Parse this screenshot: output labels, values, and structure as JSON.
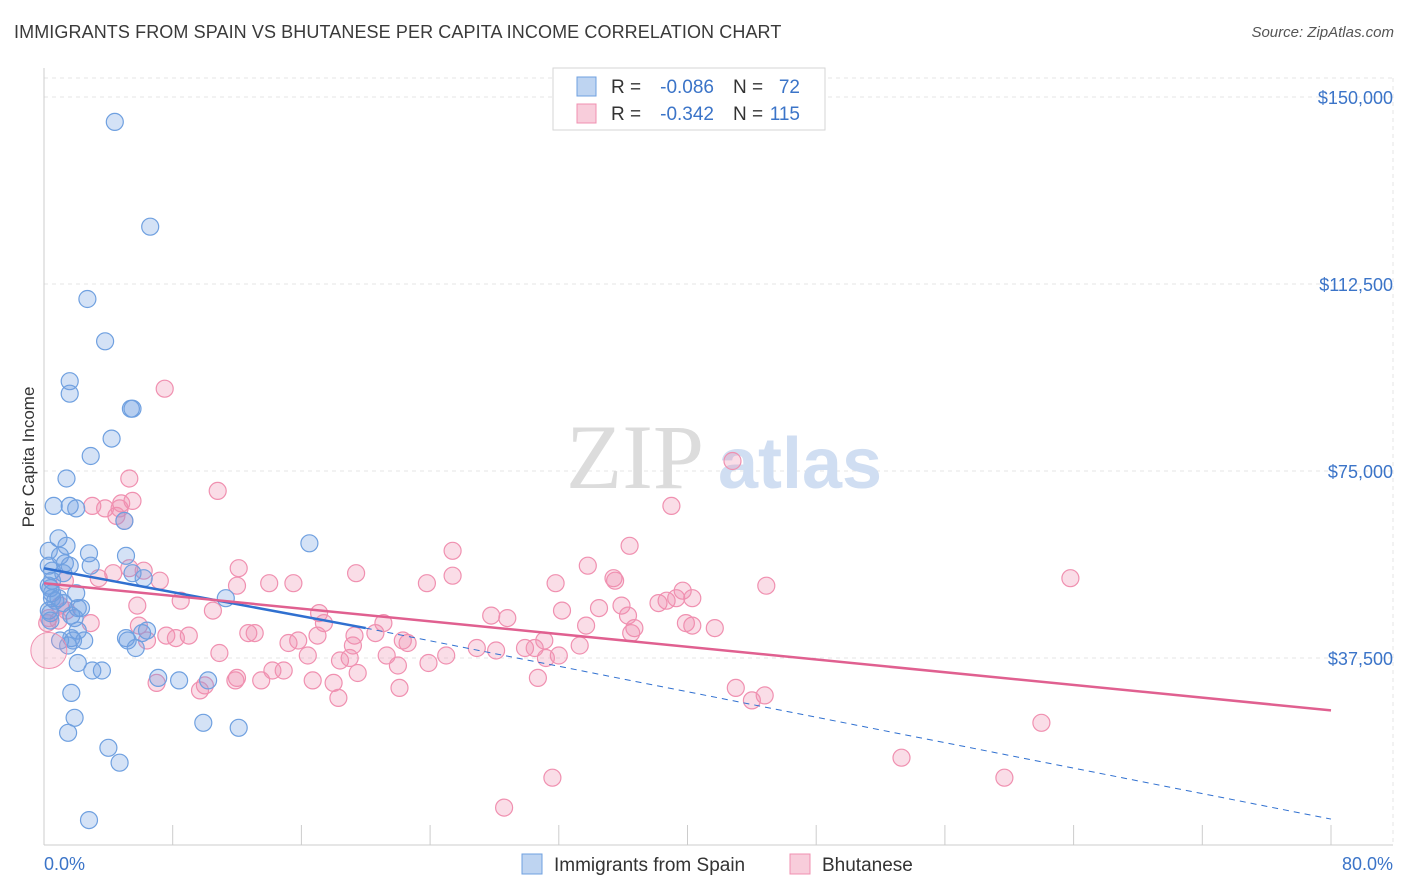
{
  "title": "IMMIGRANTS FROM SPAIN VS BHUTANESE PER CAPITA INCOME CORRELATION CHART",
  "source": "Source: ZipAtlas.com",
  "watermark": {
    "zip": "ZIP",
    "atlas": "atlas"
  },
  "chart_data": {
    "type": "scatter",
    "ylabel": "Per Capita Income",
    "xlim": [
      0,
      80
    ],
    "ylim": [
      0,
      150000
    ],
    "x_tick_labels": {
      "min": "0.0%",
      "max": "80.0%"
    },
    "y_ticks": [
      {
        "value": 150000,
        "label": "$150,000"
      },
      {
        "value": 112500,
        "label": "$112,500"
      },
      {
        "value": 75000,
        "label": "$75,000"
      },
      {
        "value": 37500,
        "label": "$37,500"
      }
    ],
    "grid": true,
    "legend_position": "top-center",
    "legend": [
      {
        "r_label": "R =",
        "r_value": "-0.086",
        "n_label": "N =",
        "n_value": "72"
      },
      {
        "r_label": "R =",
        "r_value": "-0.342",
        "n_label": "N =",
        "n_value": "115"
      }
    ],
    "series": [
      {
        "name": "Immigrants from Spain",
        "color": "#6fa0e0",
        "line_color": "#3070d0",
        "trend": {
          "x": [
            0,
            20
          ],
          "y": [
            55500,
            43500
          ],
          "dashed_to": [
            80,
            5200
          ]
        },
        "points": [
          [
            4.4,
            145000
          ],
          [
            6.6,
            124000
          ],
          [
            2.7,
            109500
          ],
          [
            3.8,
            101000
          ],
          [
            1.6,
            93000
          ],
          [
            1.6,
            90500
          ],
          [
            5.4,
            87500
          ],
          [
            5.5,
            87500
          ],
          [
            4.2,
            81500
          ],
          [
            2.9,
            78000
          ],
          [
            1.4,
            73500
          ],
          [
            1.6,
            68000
          ],
          [
            0.6,
            68000
          ],
          [
            2.0,
            67500
          ],
          [
            5.0,
            65000
          ],
          [
            0.9,
            61500
          ],
          [
            1.4,
            60000
          ],
          [
            16.5,
            60500
          ],
          [
            0.3,
            59000
          ],
          [
            1.0,
            58000
          ],
          [
            2.8,
            58500
          ],
          [
            5.1,
            58000
          ],
          [
            1.3,
            56500
          ],
          [
            1.6,
            56000
          ],
          [
            0.3,
            56000
          ],
          [
            2.9,
            56000
          ],
          [
            0.5,
            55000
          ],
          [
            1.2,
            54500
          ],
          [
            5.5,
            54500
          ],
          [
            6.2,
            53500
          ],
          [
            0.5,
            53000
          ],
          [
            0.3,
            52000
          ],
          [
            0.4,
            51500
          ],
          [
            0.5,
            50500
          ],
          [
            2.0,
            50500
          ],
          [
            0.5,
            49500
          ],
          [
            0.9,
            49500
          ],
          [
            0.7,
            49000
          ],
          [
            11.3,
            49500
          ],
          [
            1.2,
            48500
          ],
          [
            2.1,
            47500
          ],
          [
            2.3,
            47500
          ],
          [
            0.3,
            47000
          ],
          [
            0.4,
            46500
          ],
          [
            1.7,
            46000
          ],
          [
            1.9,
            45500
          ],
          [
            0.4,
            45000
          ],
          [
            2.1,
            43000
          ],
          [
            6.4,
            43000
          ],
          [
            6.1,
            42500
          ],
          [
            5.1,
            41500
          ],
          [
            1.7,
            41500
          ],
          [
            2.5,
            41000
          ],
          [
            1.0,
            41000
          ],
          [
            1.8,
            41000
          ],
          [
            5.2,
            41000
          ],
          [
            1.5,
            40000
          ],
          [
            5.7,
            39500
          ],
          [
            2.1,
            36500
          ],
          [
            3.0,
            35000
          ],
          [
            3.6,
            35000
          ],
          [
            7.1,
            33500
          ],
          [
            8.4,
            33000
          ],
          [
            10.2,
            33000
          ],
          [
            1.7,
            30500
          ],
          [
            1.9,
            25500
          ],
          [
            9.9,
            24500
          ],
          [
            12.1,
            23500
          ],
          [
            1.5,
            22500
          ],
          [
            4.0,
            19500
          ],
          [
            4.7,
            16500
          ],
          [
            2.8,
            5000
          ]
        ]
      },
      {
        "name": "Bhutanese",
        "color": "#f090b0",
        "line_color": "#e06090",
        "trend": {
          "x": [
            0,
            80
          ],
          "y": [
            52500,
            27000
          ]
        },
        "points": [
          [
            7.5,
            91500
          ],
          [
            42.8,
            77000
          ],
          [
            5.3,
            73500
          ],
          [
            10.8,
            71000
          ],
          [
            5.5,
            69000
          ],
          [
            4.8,
            68500
          ],
          [
            3.0,
            68000
          ],
          [
            4.7,
            67500
          ],
          [
            3.8,
            67500
          ],
          [
            4.5,
            66000
          ],
          [
            39.0,
            68000
          ],
          [
            5.0,
            65000
          ],
          [
            36.4,
            60000
          ],
          [
            25.4,
            59000
          ],
          [
            5.3,
            55500
          ],
          [
            33.8,
            56000
          ],
          [
            12.1,
            55500
          ],
          [
            4.3,
            54500
          ],
          [
            6.2,
            55000
          ],
          [
            7.2,
            53000
          ],
          [
            25.4,
            54000
          ],
          [
            19.4,
            54500
          ],
          [
            35.4,
            53500
          ],
          [
            63.8,
            53500
          ],
          [
            14.0,
            52500
          ],
          [
            15.5,
            52500
          ],
          [
            12.0,
            52000
          ],
          [
            31.8,
            52500
          ],
          [
            23.8,
            52500
          ],
          [
            44.9,
            52000
          ],
          [
            35.5,
            53000
          ],
          [
            39.7,
            51000
          ],
          [
            38.7,
            49000
          ],
          [
            40.3,
            49500
          ],
          [
            34.5,
            47500
          ],
          [
            35.9,
            48000
          ],
          [
            8.5,
            49000
          ],
          [
            38.2,
            48500
          ],
          [
            39.3,
            49500
          ],
          [
            5.8,
            48000
          ],
          [
            10.5,
            47000
          ],
          [
            17.1,
            46500
          ],
          [
            17.4,
            44500
          ],
          [
            27.8,
            46000
          ],
          [
            28.8,
            45500
          ],
          [
            32.2,
            47000
          ],
          [
            36.3,
            46000
          ],
          [
            33.7,
            44000
          ],
          [
            21.1,
            44500
          ],
          [
            9.0,
            42000
          ],
          [
            8.2,
            41500
          ],
          [
            12.7,
            42500
          ],
          [
            13.1,
            42500
          ],
          [
            15.8,
            41000
          ],
          [
            17.0,
            42000
          ],
          [
            19.3,
            42000
          ],
          [
            20.6,
            42500
          ],
          [
            22.3,
            41000
          ],
          [
            22.6,
            40500
          ],
          [
            15.2,
            40500
          ],
          [
            19.2,
            40000
          ],
          [
            25.0,
            38000
          ],
          [
            21.3,
            38000
          ],
          [
            26.9,
            39500
          ],
          [
            29.9,
            39500
          ],
          [
            28.1,
            39000
          ],
          [
            30.5,
            39500
          ],
          [
            32.0,
            38000
          ],
          [
            31.2,
            37500
          ],
          [
            10.9,
            38500
          ],
          [
            16.4,
            38000
          ],
          [
            18.4,
            37000
          ],
          [
            19.0,
            37500
          ],
          [
            23.9,
            36500
          ],
          [
            14.2,
            35000
          ],
          [
            12.0,
            33500
          ],
          [
            14.9,
            35000
          ],
          [
            13.5,
            33000
          ],
          [
            16.7,
            33000
          ],
          [
            18.0,
            32500
          ],
          [
            19.5,
            34500
          ],
          [
            10.0,
            32000
          ],
          [
            11.9,
            33000
          ],
          [
            7.0,
            32500
          ],
          [
            9.7,
            31000
          ],
          [
            22.1,
            31500
          ],
          [
            36.7,
            43500
          ],
          [
            36.5,
            42500
          ],
          [
            40.3,
            44000
          ],
          [
            41.7,
            43500
          ],
          [
            31.1,
            41000
          ],
          [
            33.3,
            40000
          ],
          [
            39.9,
            44500
          ],
          [
            43.0,
            31500
          ],
          [
            44.8,
            30000
          ],
          [
            44.0,
            29000
          ],
          [
            18.3,
            29500
          ],
          [
            30.7,
            33500
          ],
          [
            22.0,
            36000
          ],
          [
            62.0,
            24500
          ],
          [
            53.3,
            17500
          ],
          [
            59.7,
            13500
          ],
          [
            31.6,
            13500
          ],
          [
            28.6,
            7500
          ],
          [
            3.4,
            53500
          ],
          [
            1.3,
            53000
          ],
          [
            1.0,
            48000
          ],
          [
            1.4,
            47000
          ],
          [
            0.9,
            45000
          ],
          [
            0.3,
            45500
          ],
          [
            0.2,
            44500
          ],
          [
            2.9,
            44500
          ],
          [
            5.9,
            44000
          ],
          [
            6.4,
            41000
          ],
          [
            7.6,
            42000
          ]
        ]
      }
    ]
  }
}
